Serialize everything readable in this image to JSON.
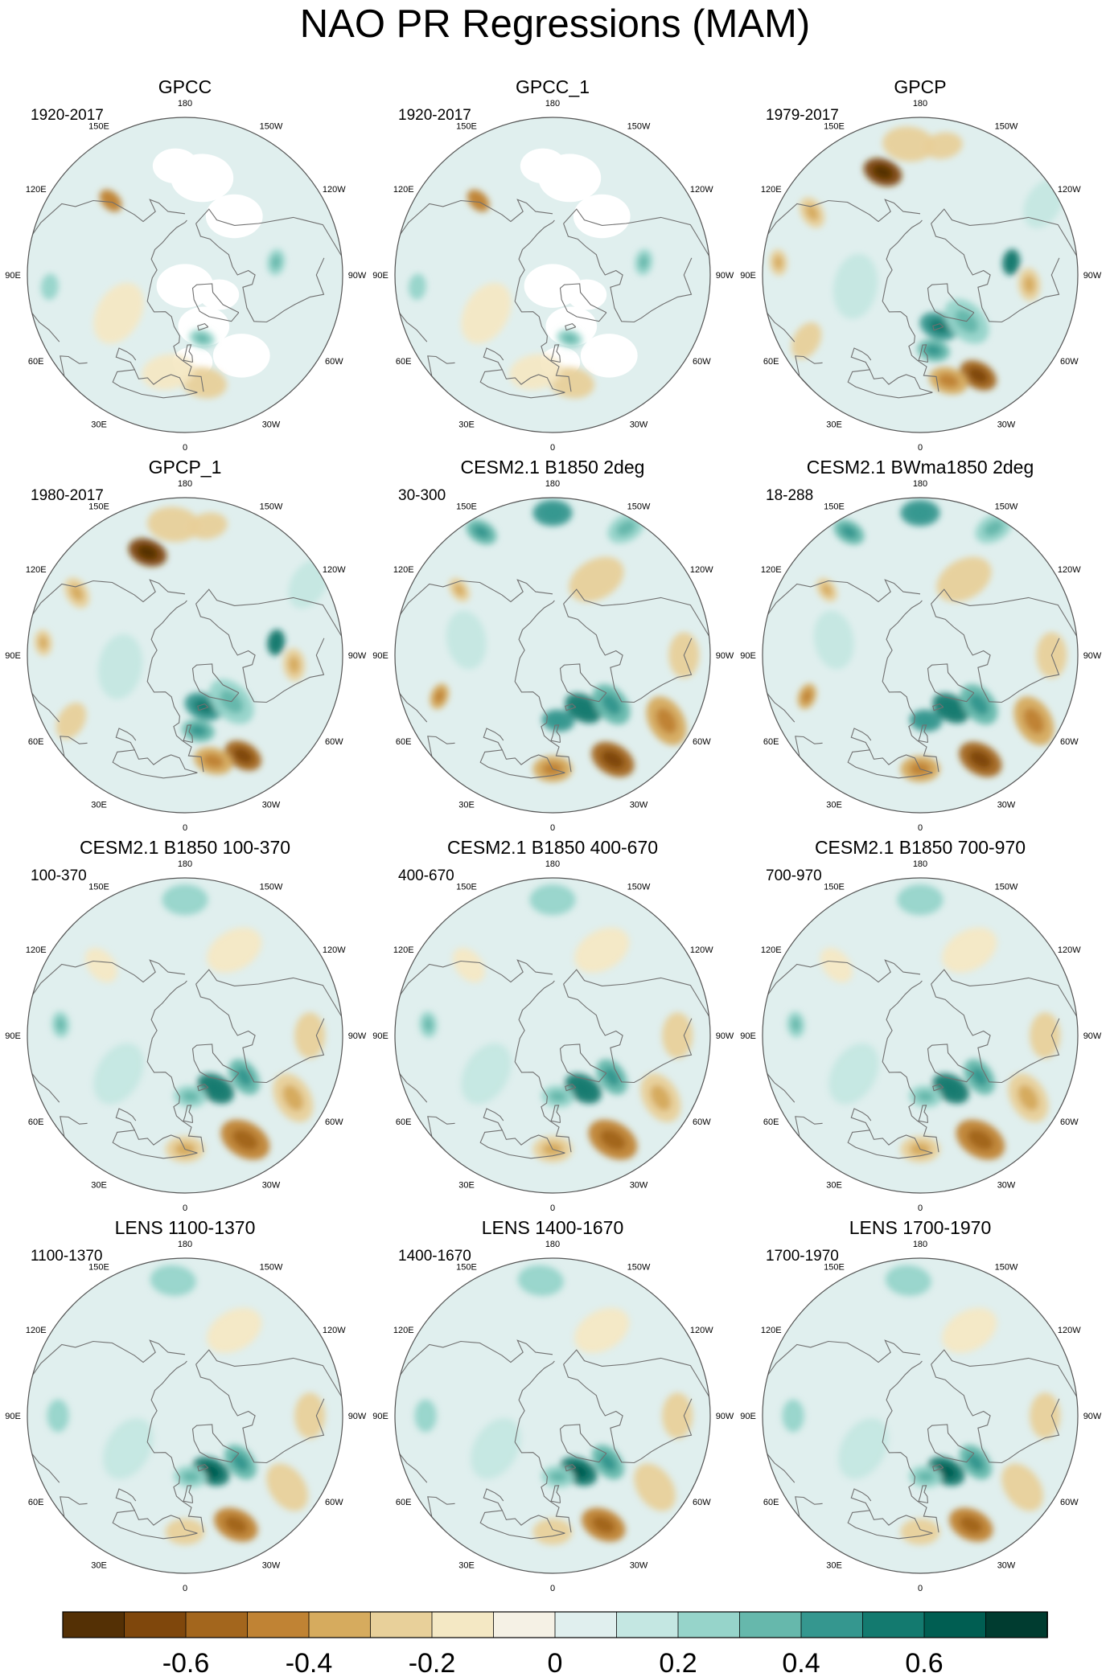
{
  "title": "NAO PR Regressions (MAM)",
  "lon_labels": [
    "180",
    "150E",
    "120E",
    "90E",
    "60E",
    "30E",
    "0",
    "30W",
    "60W",
    "90W",
    "120W",
    "150W"
  ],
  "colors": {
    "neg": [
      "#543005",
      "#7f470c",
      "#a3661d",
      "#c08334",
      "#d6ab5e",
      "#e8d09a",
      "#f4e8c4",
      "#f5f1e5"
    ],
    "pos": [
      "#e0efee",
      "#c4e7e2",
      "#96d4ca",
      "#66b8ac",
      "#35978f",
      "#137a6f",
      "#005e52",
      "#003c30"
    ],
    "land_outline": "#707070",
    "circle": "#555555"
  },
  "panels": [
    {
      "title": "GPCC",
      "years": "1920-2017",
      "missing_ocean": true
    },
    {
      "title": "GPCC_1",
      "years": "1920-2017",
      "missing_ocean": true
    },
    {
      "title": "GPCP",
      "years": "1979-2017",
      "missing_ocean": false
    },
    {
      "title": "GPCP_1",
      "years": "1980-2017",
      "missing_ocean": false
    },
    {
      "title": "CESM2.1 B1850 2deg",
      "years": "30-300",
      "missing_ocean": false
    },
    {
      "title": "CESM2.1 BWma1850 2deg",
      "years": "18-288",
      "missing_ocean": false
    },
    {
      "title": "CESM2.1 B1850 100-370",
      "years": "100-370",
      "missing_ocean": false
    },
    {
      "title": "CESM2.1 B1850 400-670",
      "years": "400-670",
      "missing_ocean": false
    },
    {
      "title": "CESM2.1 B1850 700-970",
      "years": "700-970",
      "missing_ocean": false
    },
    {
      "title": "LENS 1100-1370",
      "years": "1100-1370",
      "missing_ocean": false
    },
    {
      "title": "LENS 1400-1670",
      "years": "1400-1670",
      "missing_ocean": false
    },
    {
      "title": "LENS 1700-1970",
      "years": "1700-1970",
      "missing_ocean": false
    }
  ],
  "chart_data": {
    "type": "heatmap",
    "projection": "north-polar-stereographic",
    "variable": "precipitation regression on NAO",
    "season": "MAM",
    "colorbar": {
      "levels": [
        -0.7,
        -0.6,
        -0.5,
        -0.4,
        -0.3,
        -0.2,
        -0.1,
        0,
        0.1,
        0.2,
        0.3,
        0.4,
        0.5,
        0.6,
        0.7
      ],
      "tick_values": [
        -0.6,
        -0.4,
        -0.2,
        0,
        0.2,
        0.4,
        0.6
      ],
      "tick_labels": [
        "-0.6",
        "-0.4",
        "-0.2",
        "0",
        "0.2",
        "0.4",
        "0.6"
      ],
      "bins": 16
    },
    "features": [
      {
        "ids": [
          0,
          1
        ],
        "blobs": [
          {
            "lon": -10,
            "lat": 40,
            "value": -0.25,
            "spread": 7
          },
          {
            "lon": 10,
            "lat": 45,
            "value": -0.15,
            "spread": 8
          },
          {
            "lon": -15,
            "lat": 60,
            "value": 0.3,
            "spread": 4
          },
          {
            "lon": -98,
            "lat": 48,
            "value": 0.3,
            "spread": 4
          },
          {
            "lon": 135,
            "lat": 42,
            "value": -0.4,
            "spread": 4
          },
          {
            "lon": 85,
            "lat": 28,
            "value": 0.2,
            "spread": 4
          },
          {
            "lon": 60,
            "lat": 55,
            "value": -0.1,
            "spread": 10
          }
        ]
      },
      {
        "ids": [
          2,
          3
        ],
        "blobs": [
          {
            "lon": -30,
            "lat": 37,
            "value": -0.55,
            "spread": 6
          },
          {
            "lon": -15,
            "lat": 40,
            "value": -0.35,
            "spread": 6
          },
          {
            "lon": -20,
            "lat": 65,
            "value": 0.45,
            "spread": 6
          },
          {
            "lon": -45,
            "lat": 60,
            "value": 0.3,
            "spread": 8
          },
          {
            "lon": -10,
            "lat": 55,
            "value": 0.35,
            "spread": 5
          },
          {
            "lon": 160,
            "lat": 40,
            "value": -0.65,
            "spread": 6
          },
          {
            "lon": 175,
            "lat": 30,
            "value": -0.25,
            "spread": 8
          },
          {
            "lon": 120,
            "lat": 33,
            "value": -0.3,
            "spread": 5
          },
          {
            "lon": -98,
            "lat": 48,
            "value": 0.5,
            "spread": 4
          },
          {
            "lon": -85,
            "lat": 40,
            "value": -0.3,
            "spread": 5
          },
          {
            "lon": 95,
            "lat": 25,
            "value": -0.3,
            "spread": 4
          },
          {
            "lon": 60,
            "lat": 30,
            "value": -0.2,
            "spread": 6
          },
          {
            "lon": -170,
            "lat": 30,
            "value": -0.25,
            "spread": 6
          },
          {
            "lon": 80,
            "lat": 60,
            "value": 0.15,
            "spread": 10
          },
          {
            "lon": -120,
            "lat": 25,
            "value": 0.15,
            "spread": 8
          }
        ]
      },
      {
        "ids": [
          4,
          5
        ],
        "blobs": [
          {
            "lon": -30,
            "lat": 35,
            "value": -0.55,
            "spread": 7
          },
          {
            "lon": -60,
            "lat": 30,
            "value": -0.35,
            "spread": 8
          },
          {
            "lon": 0,
            "lat": 38,
            "value": -0.35,
            "spread": 6
          },
          {
            "lon": -90,
            "lat": 30,
            "value": -0.25,
            "spread": 7
          },
          {
            "lon": -30,
            "lat": 62,
            "value": 0.5,
            "spread": 6
          },
          {
            "lon": -50,
            "lat": 55,
            "value": 0.35,
            "spread": 7
          },
          {
            "lon": -5,
            "lat": 60,
            "value": 0.4,
            "spread": 5
          },
          {
            "lon": -150,
            "lat": 50,
            "value": -0.2,
            "spread": 9
          },
          {
            "lon": 180,
            "lat": 25,
            "value": 0.4,
            "spread": 6
          },
          {
            "lon": 150,
            "lat": 25,
            "value": 0.35,
            "spread": 5
          },
          {
            "lon": -150,
            "lat": 23,
            "value": 0.3,
            "spread": 6
          },
          {
            "lon": 125,
            "lat": 38,
            "value": -0.3,
            "spread": 4
          },
          {
            "lon": 70,
            "lat": 35,
            "value": -0.35,
            "spread": 4
          },
          {
            "lon": 100,
            "lat": 50,
            "value": 0.1,
            "spread": 9
          }
        ]
      },
      {
        "ids": [
          6,
          7,
          8
        ],
        "blobs": [
          {
            "lon": -30,
            "lat": 35,
            "value": -0.45,
            "spread": 8
          },
          {
            "lon": -60,
            "lat": 33,
            "value": -0.3,
            "spread": 8
          },
          {
            "lon": 0,
            "lat": 38,
            "value": -0.3,
            "spread": 6
          },
          {
            "lon": -30,
            "lat": 62,
            "value": 0.5,
            "spread": 6
          },
          {
            "lon": -55,
            "lat": 57,
            "value": 0.35,
            "spread": 6
          },
          {
            "lon": -5,
            "lat": 62,
            "value": 0.3,
            "spread": 5
          },
          {
            "lon": -90,
            "lat": 33,
            "value": -0.2,
            "spread": 7
          },
          {
            "lon": -150,
            "lat": 45,
            "value": -0.15,
            "spread": 9
          },
          {
            "lon": 180,
            "lat": 28,
            "value": 0.2,
            "spread": 7
          },
          {
            "lon": 95,
            "lat": 33,
            "value": 0.3,
            "spread": 4
          },
          {
            "lon": 130,
            "lat": 40,
            "value": -0.15,
            "spread": 6
          },
          {
            "lon": 60,
            "lat": 55,
            "value": 0.1,
            "spread": 10
          }
        ]
      },
      {
        "ids": [
          9,
          10,
          11
        ],
        "blobs": [
          {
            "lon": -25,
            "lat": 35,
            "value": -0.45,
            "spread": 7
          },
          {
            "lon": -55,
            "lat": 33,
            "value": -0.25,
            "spread": 8
          },
          {
            "lon": 0,
            "lat": 37,
            "value": -0.2,
            "spread": 6
          },
          {
            "lon": -25,
            "lat": 62,
            "value": 0.55,
            "spread": 6
          },
          {
            "lon": -50,
            "lat": 57,
            "value": 0.35,
            "spread": 6
          },
          {
            "lon": -5,
            "lat": 62,
            "value": 0.3,
            "spread": 5
          },
          {
            "lon": -90,
            "lat": 33,
            "value": -0.2,
            "spread": 7
          },
          {
            "lon": -150,
            "lat": 45,
            "value": -0.15,
            "spread": 9
          },
          {
            "lon": 175,
            "lat": 28,
            "value": 0.2,
            "spread": 7
          },
          {
            "lon": 90,
            "lat": 32,
            "value": 0.2,
            "spread": 5
          },
          {
            "lon": 60,
            "lat": 60,
            "value": 0.1,
            "spread": 10
          }
        ]
      }
    ]
  }
}
